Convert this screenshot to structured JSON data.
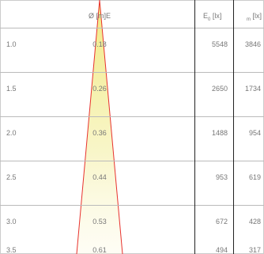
{
  "headers": {
    "diameter": "Ø [m]E",
    "e0_main": "E",
    "e0_sub": "0",
    "e0_unit": "[lx]",
    "em_sub": "m",
    "em_unit": "[lx]"
  },
  "rows": [
    {
      "distance": "1.0",
      "diameter": "0.18",
      "e0": "5548",
      "em": "3846"
    },
    {
      "distance": "1.5",
      "diameter": "0.26",
      "e0": "2650",
      "em": "1734"
    },
    {
      "distance": "2.0",
      "diameter": "0.36",
      "e0": "1488",
      "em": "954"
    },
    {
      "distance": "2.5",
      "diameter": "0.44",
      "e0": "953",
      "em": "619"
    },
    {
      "distance": "3.0",
      "diameter": "0.53",
      "e0": "672",
      "em": "428"
    },
    {
      "distance": "3.5",
      "diameter": "0.61",
      "e0": "494",
      "em": "317"
    }
  ],
  "colors": {
    "cone_edge": "#e8322e",
    "cone_fill": "#f0e87a",
    "grid": "#bbbbbb",
    "divider": "#222222"
  }
}
